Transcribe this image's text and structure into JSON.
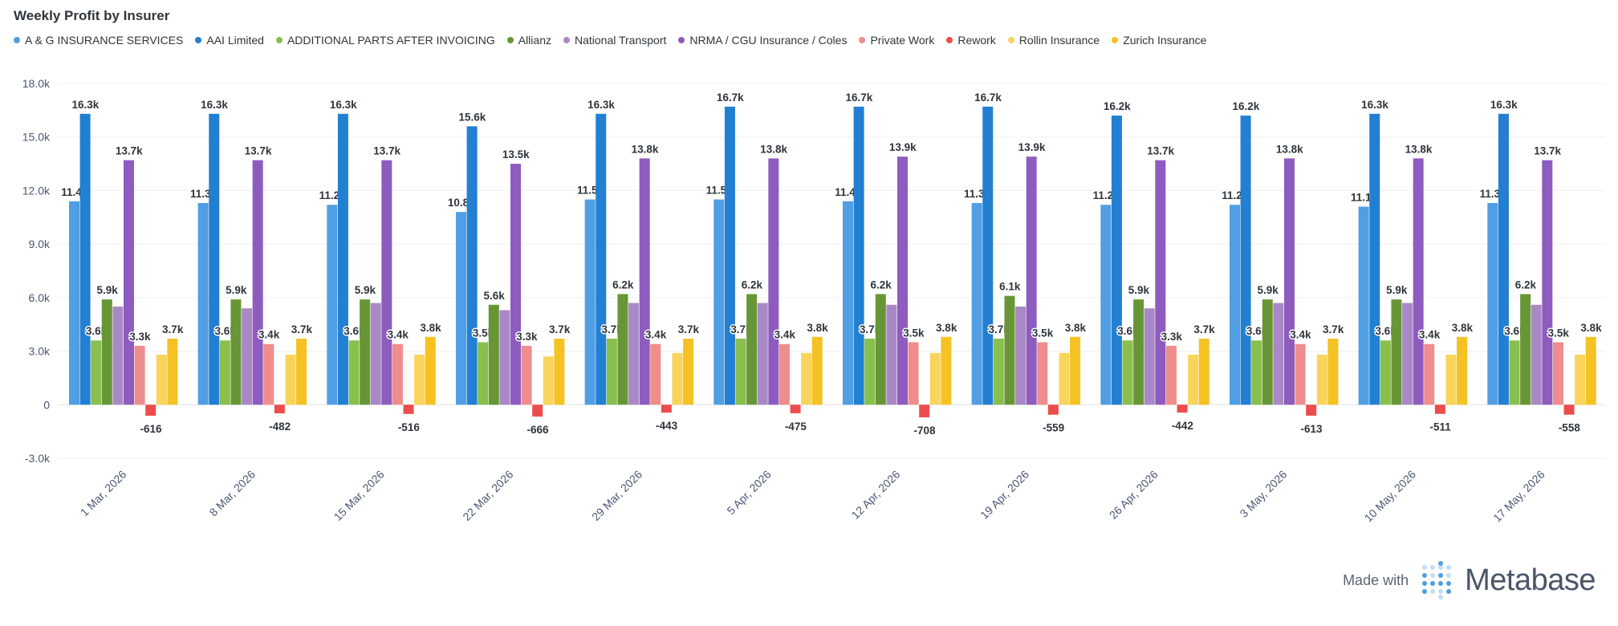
{
  "header": {
    "title": "Weekly Profit by Insurer"
  },
  "brand": {
    "made_with": "Made with",
    "name": "Metabase"
  },
  "chart_data": {
    "type": "bar",
    "title": "Weekly Profit by Insurer",
    "xlabel": "",
    "ylabel": "",
    "ylim": [
      -3000,
      18000
    ],
    "yticks": [
      -3000,
      0,
      3000,
      6000,
      9000,
      12000,
      15000,
      18000
    ],
    "ytick_labels": [
      "-3.0k",
      "0",
      "3.0k",
      "6.0k",
      "9.0k",
      "12.0k",
      "15.0k",
      "18.0k"
    ],
    "grid": true,
    "legend_position": "top-left",
    "categories": [
      "1 Mar, 2026",
      "8 Mar, 2026",
      "15 Mar, 2026",
      "22 Mar, 2026",
      "29 Mar, 2026",
      "5 Apr, 2026",
      "12 Apr, 2026",
      "19 Apr, 2026",
      "26 Apr, 2026",
      "3 May, 2026",
      "10 May, 2026",
      "17 May, 2026"
    ],
    "series": [
      {
        "name": "A & G INSURANCE SERVICES",
        "color": "#509ee3",
        "show_labels": true,
        "values": [
          11400,
          11300,
          11200,
          10800,
          11500,
          11500,
          11400,
          11300,
          11200,
          11200,
          11100,
          11300
        ],
        "labels": [
          "11.4k",
          "11.3k",
          "11.2k",
          "10.8k",
          "11.5k",
          "11.5k",
          "11.4k",
          "11.3k",
          "11.2k",
          "11.2k",
          "11.1k",
          "11.3k"
        ]
      },
      {
        "name": "AAI Limited",
        "color": "#227fd2",
        "show_labels": true,
        "values": [
          16300,
          16300,
          16300,
          15600,
          16300,
          16700,
          16700,
          16700,
          16200,
          16200,
          16300,
          16300
        ],
        "labels": [
          "16.3k",
          "16.3k",
          "16.3k",
          "15.6k",
          "16.3k",
          "16.7k",
          "16.7k",
          "16.7k",
          "16.2k",
          "16.2k",
          "16.3k",
          "16.3k"
        ]
      },
      {
        "name": "ADDITIONAL PARTS AFTER INVOICING",
        "color": "#88bf4d",
        "show_labels": true,
        "values": [
          3600,
          3600,
          3600,
          3500,
          3700,
          3700,
          3700,
          3700,
          3600,
          3600,
          3600,
          3600
        ],
        "labels": [
          "3.6k",
          "3.6k",
          "3.6k",
          "3.5k",
          "3.7k",
          "3.7k",
          "3.7k",
          "3.7k",
          "3.6k",
          "3.6k",
          "3.6k",
          "3.6k"
        ]
      },
      {
        "name": "Allianz",
        "color": "#689636",
        "show_labels": true,
        "values": [
          5900,
          5900,
          5900,
          5600,
          6200,
          6200,
          6200,
          6100,
          5900,
          5900,
          5900,
          6200
        ],
        "labels": [
          "5.9k",
          "5.9k",
          "5.9k",
          "5.6k",
          "6.2k",
          "6.2k",
          "6.2k",
          "6.1k",
          "5.9k",
          "5.9k",
          "5.9k",
          "6.2k"
        ]
      },
      {
        "name": "National Transport",
        "color": "#a989c5",
        "show_labels": false,
        "values": [
          5500,
          5400,
          5700,
          5300,
          5700,
          5700,
          5600,
          5500,
          5400,
          5700,
          5700,
          5600
        ],
        "labels": []
      },
      {
        "name": "NRMA / CGU Insurance / Coles",
        "color": "#8e5bbf",
        "show_labels": true,
        "values": [
          13700,
          13700,
          13700,
          13500,
          13800,
          13800,
          13900,
          13900,
          13700,
          13800,
          13800,
          13700
        ],
        "labels": [
          "13.7k",
          "13.7k",
          "13.7k",
          "13.5k",
          "13.8k",
          "13.8k",
          "13.9k",
          "13.9k",
          "13.7k",
          "13.8k",
          "13.8k",
          "13.7k"
        ]
      },
      {
        "name": "Private Work",
        "color": "#ef8c8c",
        "show_labels": true,
        "values": [
          3300,
          3400,
          3400,
          3300,
          3400,
          3400,
          3500,
          3500,
          3300,
          3400,
          3400,
          3500
        ],
        "labels": [
          "3.3k",
          "3.4k",
          "3.4k",
          "3.3k",
          "3.4k",
          "3.4k",
          "3.5k",
          "3.5k",
          "3.3k",
          "3.4k",
          "3.4k",
          "3.5k"
        ]
      },
      {
        "name": "Rework",
        "color": "#ed4c4c",
        "show_labels": true,
        "values": [
          -616,
          -482,
          -516,
          -666,
          -443,
          -475,
          -708,
          -559,
          -442,
          -613,
          -511,
          -558
        ],
        "labels": [
          "-616",
          "-482",
          "-516",
          "-666",
          "-443",
          "-475",
          "-708",
          "-559",
          "-442",
          "-613",
          "-511",
          "-558"
        ]
      },
      {
        "name": "Rollin Insurance",
        "color": "#f9d45c",
        "show_labels": false,
        "values": [
          2800,
          2800,
          2800,
          2700,
          2900,
          2900,
          2900,
          2900,
          2800,
          2800,
          2800,
          2800
        ],
        "labels": []
      },
      {
        "name": "Zurich Insurance",
        "color": "#f5c223",
        "show_labels": true,
        "values": [
          3700,
          3700,
          3800,
          3700,
          3700,
          3800,
          3800,
          3800,
          3700,
          3700,
          3800,
          3800
        ],
        "labels": [
          "3.7k",
          "3.7k",
          "3.8k",
          "3.7k",
          "3.7k",
          "3.8k",
          "3.8k",
          "3.8k",
          "3.7k",
          "3.7k",
          "3.8k",
          "3.8k"
        ]
      }
    ]
  }
}
